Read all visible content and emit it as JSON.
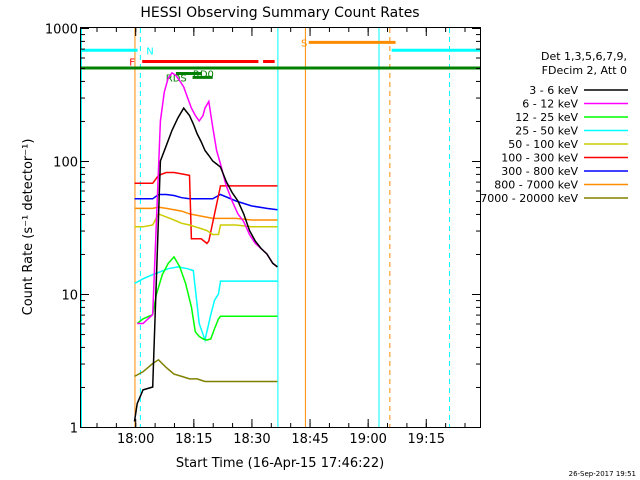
{
  "chart_data": {
    "type": "line",
    "title": "HESSI Observing Summary Count Rates",
    "xlabel": "Start Time (16-Apr-15 17:46:22)",
    "ylabel": "Count Rate (s⁻¹ detector⁻¹)",
    "x_start": "17:46:22",
    "x_axis_unit": "minutes after 17:46:22",
    "xlim": [
      0,
      103
    ],
    "ylim": [
      1,
      1000
    ],
    "yscale": "log",
    "x_ticks": [
      {
        "v": 14.0,
        "label": "18:00"
      },
      {
        "v": 29.0,
        "label": "18:15"
      },
      {
        "v": 44.0,
        "label": "18:30"
      },
      {
        "v": 59.0,
        "label": "18:45"
      },
      {
        "v": 74.0,
        "label": "19:00"
      },
      {
        "v": 89.0,
        "label": "19:15"
      }
    ],
    "y_ticks": [
      {
        "v": 1,
        "label": "1"
      },
      {
        "v": 10,
        "label": "10"
      },
      {
        "v": 100,
        "label": "100"
      },
      {
        "v": 1000,
        "label": "1000"
      }
    ],
    "legend_header": [
      "Det 1,3,5,6,7,9,",
      "FDecim 2, Att 0"
    ],
    "legend_position": "right",
    "series": [
      {
        "name": "3 - 6 keV",
        "color": "#000000",
        "x": [
          13.8,
          14.5,
          16.0,
          18.5,
          20.5,
          22.0,
          23.5,
          25.0,
          26.5,
          28.0,
          29.0,
          30.0,
          31.0,
          32.0,
          33.0,
          34.0,
          35.0,
          36.0,
          37.5,
          39.0,
          40.5,
          42.0,
          43.5,
          45.0,
          46.5,
          48.0,
          49.5,
          50.7
        ],
        "y": [
          1.1,
          1.5,
          1.9,
          2.0,
          100,
          130,
          170,
          210,
          250,
          220,
          190,
          160,
          140,
          120,
          110,
          100,
          95,
          90,
          70,
          58,
          50,
          40,
          30,
          25,
          22,
          20,
          17,
          16
        ]
      },
      {
        "name": "6 - 12 keV",
        "color": "#ff00ff",
        "x": [
          14.5,
          16.0,
          18.5,
          20.5,
          21.5,
          22.5,
          23.5,
          24.5,
          25.5,
          26.5,
          27.5,
          28.5,
          29.5,
          30.5,
          31.5,
          32.0,
          33.0,
          34.0,
          35.0,
          36.0,
          37.5,
          39.0,
          40.5,
          42.0,
          43.5,
          45.0,
          46.5,
          48.0,
          49.5,
          50.7
        ],
        "y": [
          6,
          6,
          7,
          200,
          330,
          420,
          460,
          440,
          400,
          360,
          300,
          250,
          220,
          200,
          220,
          250,
          280,
          180,
          120,
          95,
          65,
          50,
          40,
          35,
          28,
          24,
          22,
          20,
          17,
          16
        ]
      },
      {
        "name": "12 - 25 keV",
        "color": "#00ff00",
        "x": [
          14.5,
          16.0,
          18.5,
          19.5,
          21.0,
          22.5,
          24.0,
          25.5,
          27.0,
          28.5,
          29.5,
          30.5,
          31.5,
          32.5,
          33.5,
          34.5,
          35.5,
          36.0,
          40.0,
          44.0,
          48.0,
          50.7
        ],
        "y": [
          6.0,
          6.5,
          7.0,
          10,
          14,
          17,
          19,
          16,
          12,
          8,
          5.2,
          4.8,
          4.6,
          4.5,
          4.6,
          5.5,
          6.5,
          6.8,
          6.8,
          6.8,
          6.8,
          6.8
        ]
      },
      {
        "name": "25 - 50 keV",
        "color": "#00ffff",
        "x": [
          13.8,
          16.0,
          18.5,
          20.0,
          22.5,
          25.0,
          27.5,
          29.0,
          30.5,
          32.0,
          33.5,
          34.5,
          35.5,
          36.0,
          40.0,
          44.0,
          48.0,
          50.7
        ],
        "y": [
          12,
          13,
          14,
          14.5,
          15.5,
          16,
          15.5,
          15,
          6,
          4.5,
          7,
          9,
          10,
          12.5,
          12.5,
          12.5,
          12.5,
          12.5
        ]
      },
      {
        "name": "50 - 100 keV",
        "color": "#cccc00",
        "x": [
          13.8,
          16.0,
          18.5,
          20.0,
          22.0,
          24.0,
          26.0,
          28.0,
          29.5,
          31.0,
          32.5,
          34.0,
          35.5,
          36.0,
          40.0,
          44.0,
          48.0,
          50.7
        ],
        "y": [
          32,
          32,
          33,
          40,
          38,
          36,
          34,
          33,
          32,
          31,
          30,
          28,
          28,
          33,
          33,
          32,
          32,
          32
        ]
      },
      {
        "name": "100 - 300 keV",
        "color": "#ff0000",
        "x": [
          13.8,
          16.0,
          18.5,
          20.0,
          22.0,
          24.0,
          26.0,
          28.0,
          28.5,
          31.0,
          32.5,
          33.0,
          36.0,
          40.0,
          44.0,
          48.0,
          50.7
        ],
        "y": [
          68,
          68,
          68,
          78,
          82,
          82,
          80,
          78,
          26,
          26,
          24,
          25,
          65,
          65,
          65,
          65,
          65
        ]
      },
      {
        "name": "300 - 800 keV",
        "color": "#0000ff",
        "x": [
          13.8,
          16.0,
          18.5,
          20.0,
          22.0,
          24.0,
          26.0,
          28.0,
          30.0,
          32.0,
          34.0,
          36.0,
          40.0,
          44.0,
          48.0,
          50.7
        ],
        "y": [
          52,
          52,
          52,
          56,
          56,
          55,
          53,
          52,
          52,
          52,
          52,
          56,
          50,
          46,
          44,
          43
        ]
      },
      {
        "name": "800 - 7000 keV",
        "color": "#ff8c00",
        "x": [
          13.8,
          16.0,
          18.5,
          20.0,
          22.0,
          24.0,
          26.0,
          28.0,
          30.0,
          32.0,
          34.0,
          36.0,
          40.0,
          44.0,
          48.0,
          50.7
        ],
        "y": [
          44,
          44,
          44,
          45,
          44,
          43,
          42,
          40,
          39,
          38,
          37,
          37,
          37,
          36,
          36,
          36
        ]
      },
      {
        "name": "7000 - 20000 keV",
        "color": "#808000",
        "x": [
          13.8,
          16.0,
          18.5,
          20.0,
          22.0,
          24.0,
          26.0,
          28.0,
          30.0,
          32.0,
          34.0,
          36.0,
          40.0,
          44.0,
          48.0,
          50.7
        ],
        "y": [
          2.4,
          2.6,
          3.0,
          3.2,
          2.8,
          2.5,
          2.4,
          2.3,
          2.3,
          2.2,
          2.2,
          2.2,
          2.2,
          2.2,
          2.2,
          2.2
        ]
      }
    ],
    "flag_bars": [
      {
        "label": "N",
        "color": "#00ffff",
        "label_at": 17.8,
        "y": 680,
        "segments": [
          [
            0,
            14.6
          ],
          [
            80.2,
            103
          ]
        ]
      },
      {
        "label": "S",
        "color": "#ff8c00",
        "label_at": 57.6,
        "y": 780,
        "segments": [
          [
            58.8,
            81.2
          ]
        ]
      },
      {
        "label": "F",
        "color": "#ff0000",
        "label_at": 13.2,
        "y": 560,
        "segments": [
          [
            15.8,
            45.8
          ],
          [
            47.0,
            50.0
          ]
        ]
      },
      {
        "label": "",
        "color": "#008000",
        "label_at": null,
        "y": 500,
        "segments": [
          [
            0,
            103
          ]
        ]
      },
      {
        "label": "RD0",
        "color": "#008000",
        "label_at": 31.6,
        "y": 455,
        "segments": [
          [
            24.5,
            31.2
          ]
        ]
      },
      {
        "label": "RDS",
        "color": "#008000",
        "label_at": 24.6,
        "y": 425,
        "segments": [
          [
            28.8,
            34.0
          ]
        ]
      }
    ],
    "vertical_lines": [
      {
        "x": 0.0,
        "color": "#00ffff",
        "style": "solid"
      },
      {
        "x": 15.2,
        "color": "#00ffff",
        "style": "dashed"
      },
      {
        "x": 13.8,
        "color": "#ff8c00",
        "style": "solid"
      },
      {
        "x": 50.7,
        "color": "#00ffff",
        "style": "solid"
      },
      {
        "x": 57.8,
        "color": "#ff8c00",
        "style": "solid"
      },
      {
        "x": 76.8,
        "color": "#00ffff",
        "style": "solid"
      },
      {
        "x": 79.6,
        "color": "#ff8c00",
        "style": "dashed"
      },
      {
        "x": 95.0,
        "color": "#00ffff",
        "style": "dashed"
      }
    ],
    "timestamp": "26-Sep-2017 19:51"
  }
}
